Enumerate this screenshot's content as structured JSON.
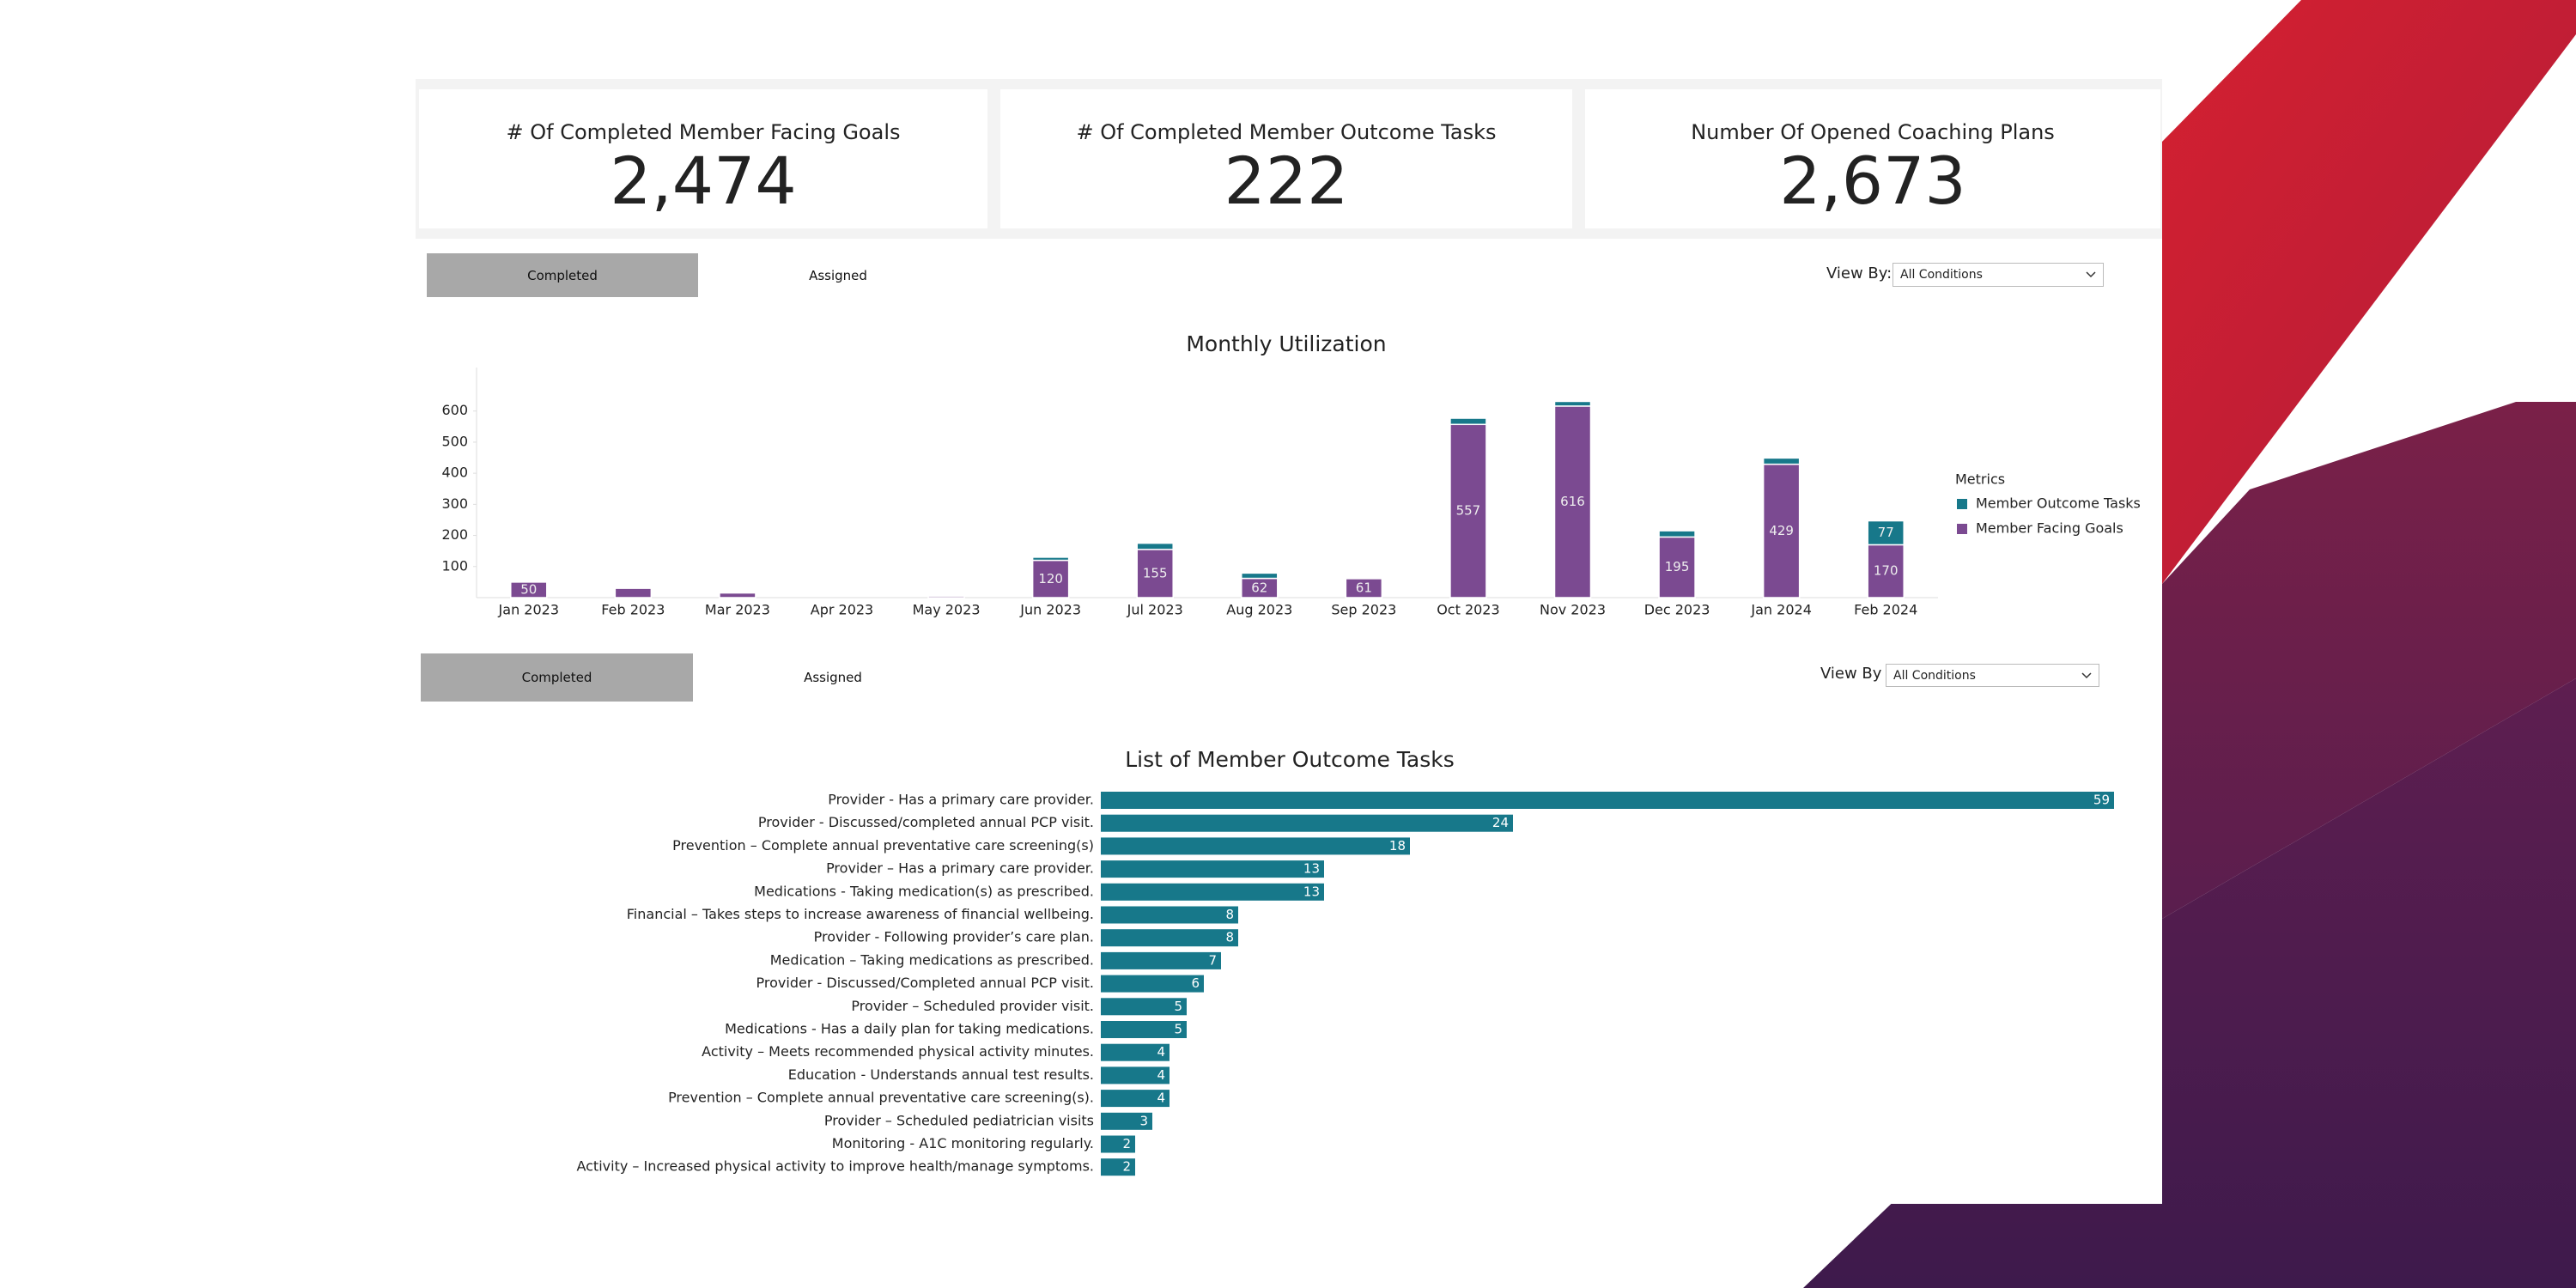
{
  "kpis": [
    {
      "title": "# Of Completed Member Facing Goals",
      "value": "2,474"
    },
    {
      "title": "# Of Completed Member Outcome Tasks",
      "value": "222"
    },
    {
      "title": "Number Of Opened Coaching Plans",
      "value": "2,673"
    }
  ],
  "controls": [
    {
      "tabs": [
        "Completed",
        "Assigned"
      ],
      "view_by_label": "View By:",
      "view_by_value": "All Conditions"
    },
    {
      "tabs": [
        "Completed",
        "Assigned"
      ],
      "view_by_label": "View By :",
      "view_by_value": "All Conditions"
    }
  ],
  "chart_data": [
    {
      "type": "stacked-bar",
      "title": "Monthly Utilization",
      "categories": [
        "Jan 2023",
        "Feb 2023",
        "Mar 2023",
        "Apr 2023",
        "May 2023",
        "Jun 2023",
        "Jul 2023",
        "Aug 2023",
        "Sep 2023",
        "Oct 2023",
        "Nov 2023",
        "Dec 2023",
        "Jan 2024",
        "Feb 2024"
      ],
      "legend_title": "Metrics",
      "legend": "right",
      "series": [
        {
          "name": "Member Outcome Tasks",
          "color": "#17788a",
          "values": [
            0,
            0,
            0,
            0,
            0,
            10,
            20,
            17,
            0,
            20,
            15,
            20,
            20,
            77
          ]
        },
        {
          "name": "Member Facing Goals",
          "color": "#7b4a91",
          "values": [
            50,
            30,
            15,
            0,
            5,
            120,
            155,
            62,
            61,
            557,
            616,
            195,
            429,
            170
          ]
        }
      ],
      "ylim": [
        0,
        740
      ],
      "yticks": [
        100,
        200,
        300,
        400,
        500,
        600
      ]
    },
    {
      "type": "barh",
      "title": "List of Member Outcome Tasks",
      "color": "#17788a",
      "xlim": [
        0,
        59
      ],
      "categories": [
        "Provider - Has a primary care provider.",
        "Provider - Discussed/completed annual PCP visit.",
        "Prevention – Complete annual preventative care screening(s)",
        "Provider – Has a primary care provider.",
        "Medications - Taking medication(s) as prescribed.",
        "Financial – Takes steps to increase awareness of financial wellbeing.",
        "Provider - Following provider’s care plan.",
        "Medication – Taking medications as prescribed.",
        "Provider - Discussed/Completed annual PCP visit.",
        "Provider – Scheduled provider visit.",
        "Medications - Has a daily plan for taking medications.",
        "Activity – Meets recommended physical activity minutes.",
        "Education - Understands annual test results.",
        "Prevention – Complete annual preventative care screening(s).",
        "Provider – Scheduled pediatrician visits",
        "Monitoring - A1C monitoring regularly.",
        "Activity – Increased physical activity to improve health/manage symptoms."
      ],
      "values": [
        59,
        24,
        18,
        13,
        13,
        8,
        8,
        7,
        6,
        5,
        5,
        4,
        4,
        4,
        3,
        2,
        2
      ]
    }
  ]
}
